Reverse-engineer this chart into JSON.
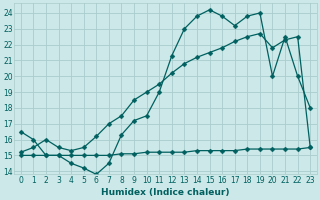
{
  "xlabel": "Humidex (Indice chaleur)",
  "background_color": "#cce8e8",
  "grid_color": "#aacccc",
  "line_color": "#006060",
  "xlim": [
    -0.5,
    23.5
  ],
  "ylim": [
    13.8,
    24.6
  ],
  "yticks": [
    14,
    15,
    16,
    17,
    18,
    19,
    20,
    21,
    22,
    23,
    24
  ],
  "xticks": [
    0,
    1,
    2,
    3,
    4,
    5,
    6,
    7,
    8,
    9,
    10,
    11,
    12,
    13,
    14,
    15,
    16,
    17,
    18,
    19,
    20,
    21,
    22,
    23
  ],
  "line1_x": [
    0,
    1,
    2,
    3,
    4,
    5,
    6,
    7,
    8,
    9,
    10,
    11,
    12,
    13,
    14,
    15,
    16,
    17,
    18,
    19,
    20,
    21,
    22,
    23
  ],
  "line1_y": [
    16.5,
    16.0,
    15.0,
    15.0,
    14.5,
    14.2,
    13.8,
    14.5,
    16.3,
    17.2,
    17.5,
    19.0,
    21.3,
    23.0,
    23.8,
    24.2,
    23.8,
    23.2,
    23.8,
    24.0,
    20.0,
    22.5,
    20.0,
    18.0
  ],
  "line2_x": [
    0,
    1,
    2,
    3,
    4,
    5,
    6,
    7,
    8,
    9,
    10,
    11,
    12,
    13,
    14,
    15,
    16,
    17,
    18,
    19,
    20,
    21,
    22,
    23
  ],
  "line2_y": [
    15.0,
    15.0,
    15.0,
    15.0,
    15.0,
    15.0,
    15.0,
    15.0,
    15.1,
    15.1,
    15.2,
    15.2,
    15.2,
    15.2,
    15.3,
    15.3,
    15.3,
    15.3,
    15.4,
    15.4,
    15.4,
    15.4,
    15.4,
    15.5
  ],
  "line3_x": [
    0,
    1,
    2,
    3,
    4,
    5,
    6,
    7,
    8,
    9,
    10,
    11,
    12,
    13,
    14,
    15,
    16,
    17,
    18,
    19,
    20,
    21,
    22,
    23
  ],
  "line3_y": [
    15.2,
    15.5,
    16.0,
    15.5,
    15.3,
    15.5,
    16.2,
    17.0,
    17.5,
    18.5,
    19.0,
    19.5,
    20.2,
    20.8,
    21.2,
    21.5,
    21.8,
    22.2,
    22.5,
    22.7,
    21.8,
    22.3,
    22.5,
    15.5
  ],
  "marker": "D",
  "markersize": 2.5,
  "linewidth": 0.9
}
